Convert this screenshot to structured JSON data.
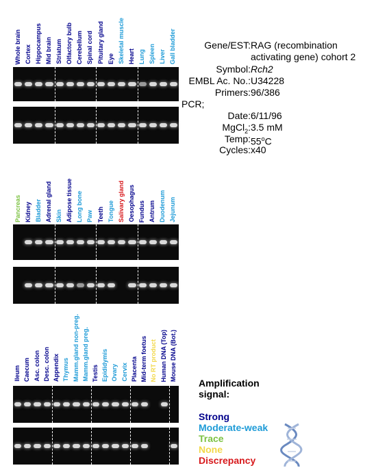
{
  "panels": [
    {
      "labels": [
        {
          "text": "Whole brain",
          "color": "#00008b"
        },
        {
          "text": "Cortex",
          "color": "#00008b"
        },
        {
          "text": "Hippocampus",
          "color": "#00008b"
        },
        {
          "text": "Mid brain",
          "color": "#00008b"
        },
        {
          "text": "Striatum",
          "color": "#00008b"
        },
        {
          "text": "Olfactory bulb",
          "color": "#00008b"
        },
        {
          "text": "Cerebellum",
          "color": "#00008b"
        },
        {
          "text": "Spinal cord",
          "color": "#00008b"
        },
        {
          "text": "Pituitary gland",
          "color": "#00008b"
        },
        {
          "text": "Eye",
          "color": "#00008b"
        },
        {
          "text": "Skeletal muscle",
          "color": "#1e9bd7"
        },
        {
          "text": "Heart",
          "color": "#00008b"
        },
        {
          "text": "Lung",
          "color": "#1e9bd7"
        },
        {
          "text": "Spleen",
          "color": "#1e9bd7"
        },
        {
          "text": "Liver",
          "color": "#1e9bd7"
        },
        {
          "text": "Gall bladder",
          "color": "#1e9bd7"
        }
      ],
      "bands_top": [
        1,
        1,
        1,
        1,
        1,
        1,
        1,
        1,
        1,
        1,
        1,
        1,
        0.6,
        1,
        1,
        1
      ],
      "bands_bottom": [
        1,
        1,
        1,
        1,
        1,
        1,
        1,
        1,
        1,
        1,
        1,
        1,
        1,
        1,
        1,
        1
      ]
    },
    {
      "labels": [
        {
          "text": "Pancreas",
          "color": "#7cc242"
        },
        {
          "text": "Kidney",
          "color": "#00008b"
        },
        {
          "text": "Bladder",
          "color": "#1e9bd7"
        },
        {
          "text": "Adrenal gland",
          "color": "#00008b"
        },
        {
          "text": "Skin",
          "color": "#1e9bd7"
        },
        {
          "text": "Adipose tissue",
          "color": "#00008b"
        },
        {
          "text": "Long bone",
          "color": "#1e9bd7"
        },
        {
          "text": "Paw",
          "color": "#1e9bd7"
        },
        {
          "text": "Teeth",
          "color": "#00008b"
        },
        {
          "text": "Tongue",
          "color": "#1e9bd7"
        },
        {
          "text": "Salivary gland",
          "color": "#d7191c"
        },
        {
          "text": "Oesophagus",
          "color": "#00008b"
        },
        {
          "text": "Fundus",
          "color": "#00008b"
        },
        {
          "text": "Antrum",
          "color": "#00008b"
        },
        {
          "text": "Duodenum",
          "color": "#1e9bd7"
        },
        {
          "text": "Jejunum",
          "color": "#1e9bd7"
        }
      ],
      "bands_top": [
        0,
        1,
        1,
        1,
        1,
        1,
        1,
        1,
        1,
        1,
        1,
        1,
        1,
        1,
        1,
        1
      ],
      "bands_bottom": [
        0,
        1,
        1,
        1,
        1,
        1,
        0.6,
        1,
        1,
        1,
        0,
        1,
        1,
        1,
        1,
        1
      ]
    },
    {
      "labels": [
        {
          "text": "Ileum",
          "color": "#00008b"
        },
        {
          "text": "Caecum",
          "color": "#00008b"
        },
        {
          "text": "Asc. colon",
          "color": "#00008b"
        },
        {
          "text": "Desc. colon",
          "color": "#00008b"
        },
        {
          "text": "Appendix",
          "color": "#00008b"
        },
        {
          "text": "Thymus",
          "color": "#1e9bd7"
        },
        {
          "text": "Mamm.gland non-preg.",
          "color": "#1e9bd7"
        },
        {
          "text": "Mamm.gland preg.",
          "color": "#1e9bd7"
        },
        {
          "text": "Testis",
          "color": "#00008b"
        },
        {
          "text": "Epididymis",
          "color": "#1e9bd7"
        },
        {
          "text": "Ovary",
          "color": "#1e9bd7"
        },
        {
          "text": "Cervix",
          "color": "#1e9bd7"
        },
        {
          "text": "Placenta",
          "color": "#00008b"
        },
        {
          "text": "Mid-term foetus",
          "color": "#00008b"
        },
        {
          "text": "No RT product",
          "color": "#f2d84a"
        },
        {
          "text": "Human DNA (Top)",
          "color": "#00008b"
        },
        {
          "text": "Mouse DNA (Bot.)",
          "color": "#00008b"
        }
      ],
      "bands_top": [
        1,
        1,
        1,
        1,
        1,
        1,
        1,
        1,
        1,
        1,
        1,
        1,
        1,
        1,
        0,
        1,
        0
      ],
      "bands_bottom": [
        1,
        1,
        1,
        1,
        1,
        1,
        1,
        1,
        1,
        1,
        1,
        1,
        1,
        1,
        0,
        0,
        1
      ]
    }
  ],
  "info": {
    "gene_key": "Gene/EST:",
    "gene_val_1": "RAG (recombination",
    "gene_val_2": "activating gene) cohort 2",
    "symbol_key": "Symbol:",
    "symbol_val": "Rch2",
    "embl_key": "EMBL Ac. No.:",
    "embl_val": "U34228",
    "primers_key": "Primers:",
    "primers_val": "96/386",
    "pcr_key": "PCR;",
    "date_key": "Date:",
    "date_val": "6/11/96",
    "mgcl_key_a": "MgCl",
    "mgcl_key_sub": "2",
    "mgcl_key_b": ":",
    "mgcl_val": "3.5 mM",
    "temp_key": "Temp:",
    "temp_val_a": "55",
    "temp_val_sup": "o",
    "temp_val_b": "C",
    "cycles_key": "Cycles:",
    "cycles_val": "x40"
  },
  "legend": {
    "title_1": "Amplification",
    "title_2": "signal:",
    "items": [
      {
        "text": "Strong",
        "color": "#00008b"
      },
      {
        "text": "Moderate-weak",
        "color": "#1e9bd7"
      },
      {
        "text": "Trace",
        "color": "#7cc242"
      },
      {
        "text": "None",
        "color": "#f2d84a"
      },
      {
        "text": "Discrepancy",
        "color": "#d7191c"
      }
    ]
  }
}
